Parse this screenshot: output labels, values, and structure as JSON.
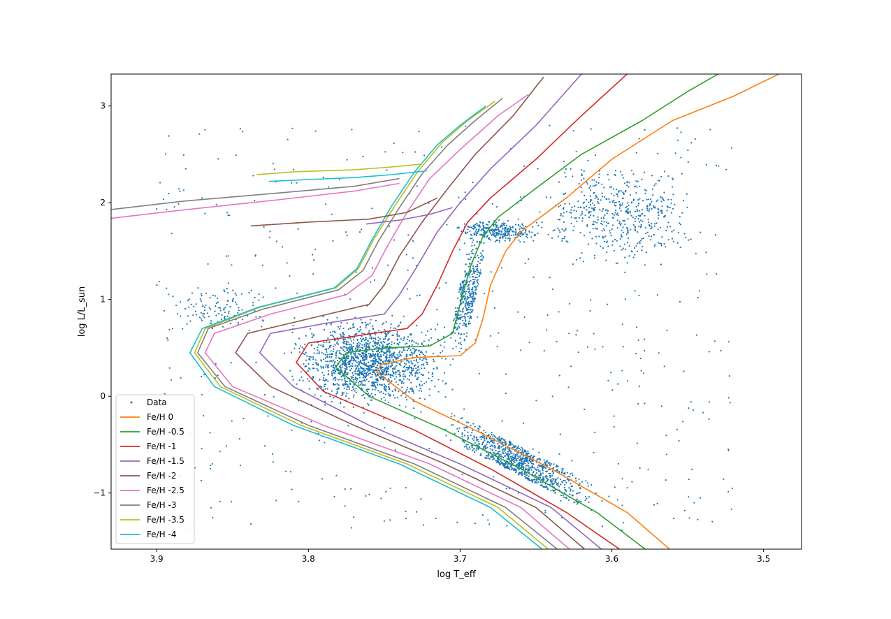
{
  "chart_data": {
    "type": "scatter",
    "title": "",
    "xlabel": "log T_eff",
    "ylabel": "log L/L_sun",
    "xlim": [
      3.93,
      3.475
    ],
    "ylim": [
      -1.58,
      3.33
    ],
    "x_reversed": true,
    "x_ticks": [
      3.9,
      3.8,
      3.7,
      3.6,
      3.5
    ],
    "x_tick_labels": [
      "3.9",
      "3.8",
      "3.7",
      "3.6",
      "3.5"
    ],
    "y_ticks": [
      -1,
      0,
      1,
      2,
      3
    ],
    "y_tick_labels": [
      "−1",
      "0",
      "1",
      "2",
      "3"
    ],
    "grid": false,
    "legend_position": "lower-left",
    "scatter": {
      "name": "Data",
      "color": "#1f77b4",
      "clusters": [
        {
          "region": "main-sequence-turnoff",
          "x_range": [
            3.82,
            3.7
          ],
          "y_range": [
            -0.2,
            0.9
          ]
        },
        {
          "region": "lower-main-sequence",
          "x_range": [
            3.72,
            3.6
          ],
          "y_range": [
            -1.15,
            -0.2
          ]
        },
        {
          "region": "red-giant-branch",
          "x_range": [
            3.71,
            3.68
          ],
          "y_range": [
            0.3,
            1.8
          ]
        },
        {
          "region": "red-clump",
          "x_range": [
            3.71,
            3.64
          ],
          "y_range": [
            1.55,
            1.85
          ]
        },
        {
          "region": "upper-giants",
          "x_range": [
            3.66,
            3.53
          ],
          "y_range": [
            1.2,
            2.6
          ]
        },
        {
          "region": "blue-stragglers",
          "x_range": [
            3.9,
            3.82
          ],
          "y_range": [
            0.6,
            1.2
          ]
        }
      ]
    },
    "series": [
      {
        "name": "Fe/H 0",
        "color": "#ff7f0e",
        "x": [
          3.562,
          3.59,
          3.64,
          3.69,
          3.73,
          3.755,
          3.752,
          3.73,
          3.7,
          3.69,
          3.685,
          3.68,
          3.67,
          3.66,
          3.63,
          3.6,
          3.56,
          3.52,
          3.49
        ],
        "y": [
          -1.58,
          -1.2,
          -0.75,
          -0.35,
          -0.05,
          0.25,
          0.33,
          0.4,
          0.42,
          0.55,
          0.8,
          1.15,
          1.5,
          1.7,
          2.05,
          2.45,
          2.85,
          3.1,
          3.33
        ]
      },
      {
        "name": "Fe/H -0.5",
        "color": "#2ca02c",
        "x": [
          3.578,
          3.61,
          3.66,
          3.71,
          3.76,
          3.782,
          3.775,
          3.75,
          3.72,
          3.705,
          3.7,
          3.693,
          3.685,
          3.675,
          3.65,
          3.62,
          3.58,
          3.55,
          3.53
        ],
        "y": [
          -1.58,
          -1.2,
          -0.75,
          -0.35,
          0.0,
          0.3,
          0.45,
          0.5,
          0.52,
          0.65,
          0.95,
          1.35,
          1.65,
          1.85,
          2.15,
          2.5,
          2.85,
          3.15,
          3.33
        ]
      },
      {
        "name": "Fe/H -1",
        "color": "#d62728",
        "x": [
          3.595,
          3.63,
          3.68,
          3.73,
          3.79,
          3.808,
          3.8,
          3.77,
          3.735,
          3.725,
          3.715,
          3.705,
          3.695,
          3.68,
          3.65,
          3.62,
          3.59
        ],
        "y": [
          -1.58,
          -1.2,
          -0.75,
          -0.35,
          0.05,
          0.35,
          0.55,
          0.62,
          0.7,
          0.85,
          1.15,
          1.5,
          1.8,
          2.05,
          2.45,
          2.9,
          3.33
        ]
      },
      {
        "name": "Fe/H -1.5",
        "color": "#9467bd",
        "x": [
          3.607,
          3.64,
          3.7,
          3.76,
          3.81,
          3.832,
          3.825,
          3.79,
          3.75,
          3.74,
          3.728,
          3.715,
          3.7,
          3.68,
          3.65,
          3.62
        ],
        "y": [
          -1.58,
          -1.15,
          -0.7,
          -0.3,
          0.1,
          0.45,
          0.65,
          0.75,
          0.85,
          1.05,
          1.35,
          1.7,
          2.0,
          2.35,
          2.8,
          3.33
        ]
      },
      {
        "name": "Fe/H -2",
        "color": "#8c564b",
        "x": [
          3.618,
          3.65,
          3.71,
          3.77,
          3.825,
          3.848,
          3.84,
          3.8,
          3.76,
          3.75,
          3.74,
          3.725,
          3.708,
          3.69,
          3.665,
          3.645
        ],
        "y": [
          -1.58,
          -1.15,
          -0.7,
          -0.3,
          0.1,
          0.45,
          0.65,
          0.8,
          0.95,
          1.15,
          1.45,
          1.8,
          2.15,
          2.5,
          2.9,
          3.3
        ]
      },
      {
        "name": "Fe/H -2.5",
        "color": "#e377c2",
        "x": [
          3.628,
          3.66,
          3.72,
          3.79,
          3.85,
          3.868,
          3.862,
          3.825,
          3.775,
          3.758,
          3.748,
          3.735,
          3.72,
          3.7,
          3.675,
          3.655
        ],
        "y": [
          -1.58,
          -1.15,
          -0.7,
          -0.3,
          0.1,
          0.45,
          0.65,
          0.85,
          1.05,
          1.25,
          1.55,
          1.9,
          2.25,
          2.55,
          2.9,
          3.12
        ]
      },
      {
        "name": "Fe/H -3",
        "color": "#7f7f7f",
        "x": [
          3.636,
          3.67,
          3.73,
          3.8,
          3.855,
          3.873,
          3.866,
          3.83,
          3.78,
          3.764,
          3.754,
          3.74,
          3.725,
          3.708,
          3.69,
          3.672
        ],
        "y": [
          -1.58,
          -1.15,
          -0.7,
          -0.3,
          0.1,
          0.45,
          0.7,
          0.9,
          1.1,
          1.3,
          1.6,
          1.95,
          2.3,
          2.6,
          2.85,
          3.08
        ]
      },
      {
        "name": "Fe/H -3.5",
        "color": "#bcbd22",
        "x": [
          3.642,
          3.675,
          3.735,
          3.805,
          3.858,
          3.875,
          3.868,
          3.832,
          3.782,
          3.767,
          3.757,
          3.743,
          3.728,
          3.712,
          3.695,
          3.677
        ],
        "y": [
          -1.58,
          -1.15,
          -0.7,
          -0.3,
          0.1,
          0.45,
          0.7,
          0.92,
          1.12,
          1.32,
          1.62,
          1.97,
          2.32,
          2.62,
          2.85,
          3.05
        ]
      },
      {
        "name": "Fe/H -4",
        "color": "#17becf",
        "x": [
          3.646,
          3.68,
          3.74,
          3.81,
          3.862,
          3.878,
          3.87,
          3.833,
          3.783,
          3.768,
          3.758,
          3.745,
          3.73,
          3.715,
          3.7,
          3.683
        ],
        "y": [
          -1.58,
          -1.15,
          -0.7,
          -0.3,
          0.1,
          0.45,
          0.7,
          0.92,
          1.12,
          1.32,
          1.62,
          1.97,
          2.32,
          2.6,
          2.8,
          3.0
        ]
      }
    ],
    "horizontal_branches": [
      {
        "name": "Fe/H -2",
        "color": "#8c564b",
        "x": [
          3.838,
          3.8,
          3.76,
          3.735,
          3.715
        ],
        "y": [
          1.76,
          1.8,
          1.83,
          1.9,
          2.05
        ]
      },
      {
        "name": "Fe/H -2.5",
        "color": "#e377c2",
        "x": [
          3.93,
          3.88,
          3.82,
          3.77,
          3.74
        ],
        "y": [
          1.84,
          1.93,
          2.03,
          2.12,
          2.2
        ]
      },
      {
        "name": "Fe/H -3",
        "color": "#7f7f7f",
        "x": [
          3.93,
          3.88,
          3.82,
          3.77,
          3.74
        ],
        "y": [
          1.93,
          2.02,
          2.1,
          2.17,
          2.25
        ]
      },
      {
        "name": "Fe/H -3.5",
        "color": "#bcbd22",
        "x": [
          3.834,
          3.81,
          3.77,
          3.745,
          3.725
        ],
        "y": [
          2.29,
          2.32,
          2.34,
          2.37,
          2.4
        ]
      },
      {
        "name": "Fe/H -4",
        "color": "#17becf",
        "x": [
          3.826,
          3.8,
          3.77,
          3.745,
          3.722
        ],
        "y": [
          2.22,
          2.24,
          2.26,
          2.29,
          2.33
        ]
      },
      {
        "name": "Fe/H -1.5",
        "color": "#9467bd",
        "x": [
          3.762,
          3.74,
          3.72,
          3.705
        ],
        "y": [
          1.78,
          1.82,
          1.88,
          1.95
        ]
      }
    ],
    "legend": [
      "Data",
      "Fe/H 0",
      "Fe/H -0.5",
      "Fe/H -1",
      "Fe/H -1.5",
      "Fe/H -2",
      "Fe/H -2.5",
      "Fe/H -3",
      "Fe/H -3.5",
      "Fe/H -4"
    ]
  }
}
